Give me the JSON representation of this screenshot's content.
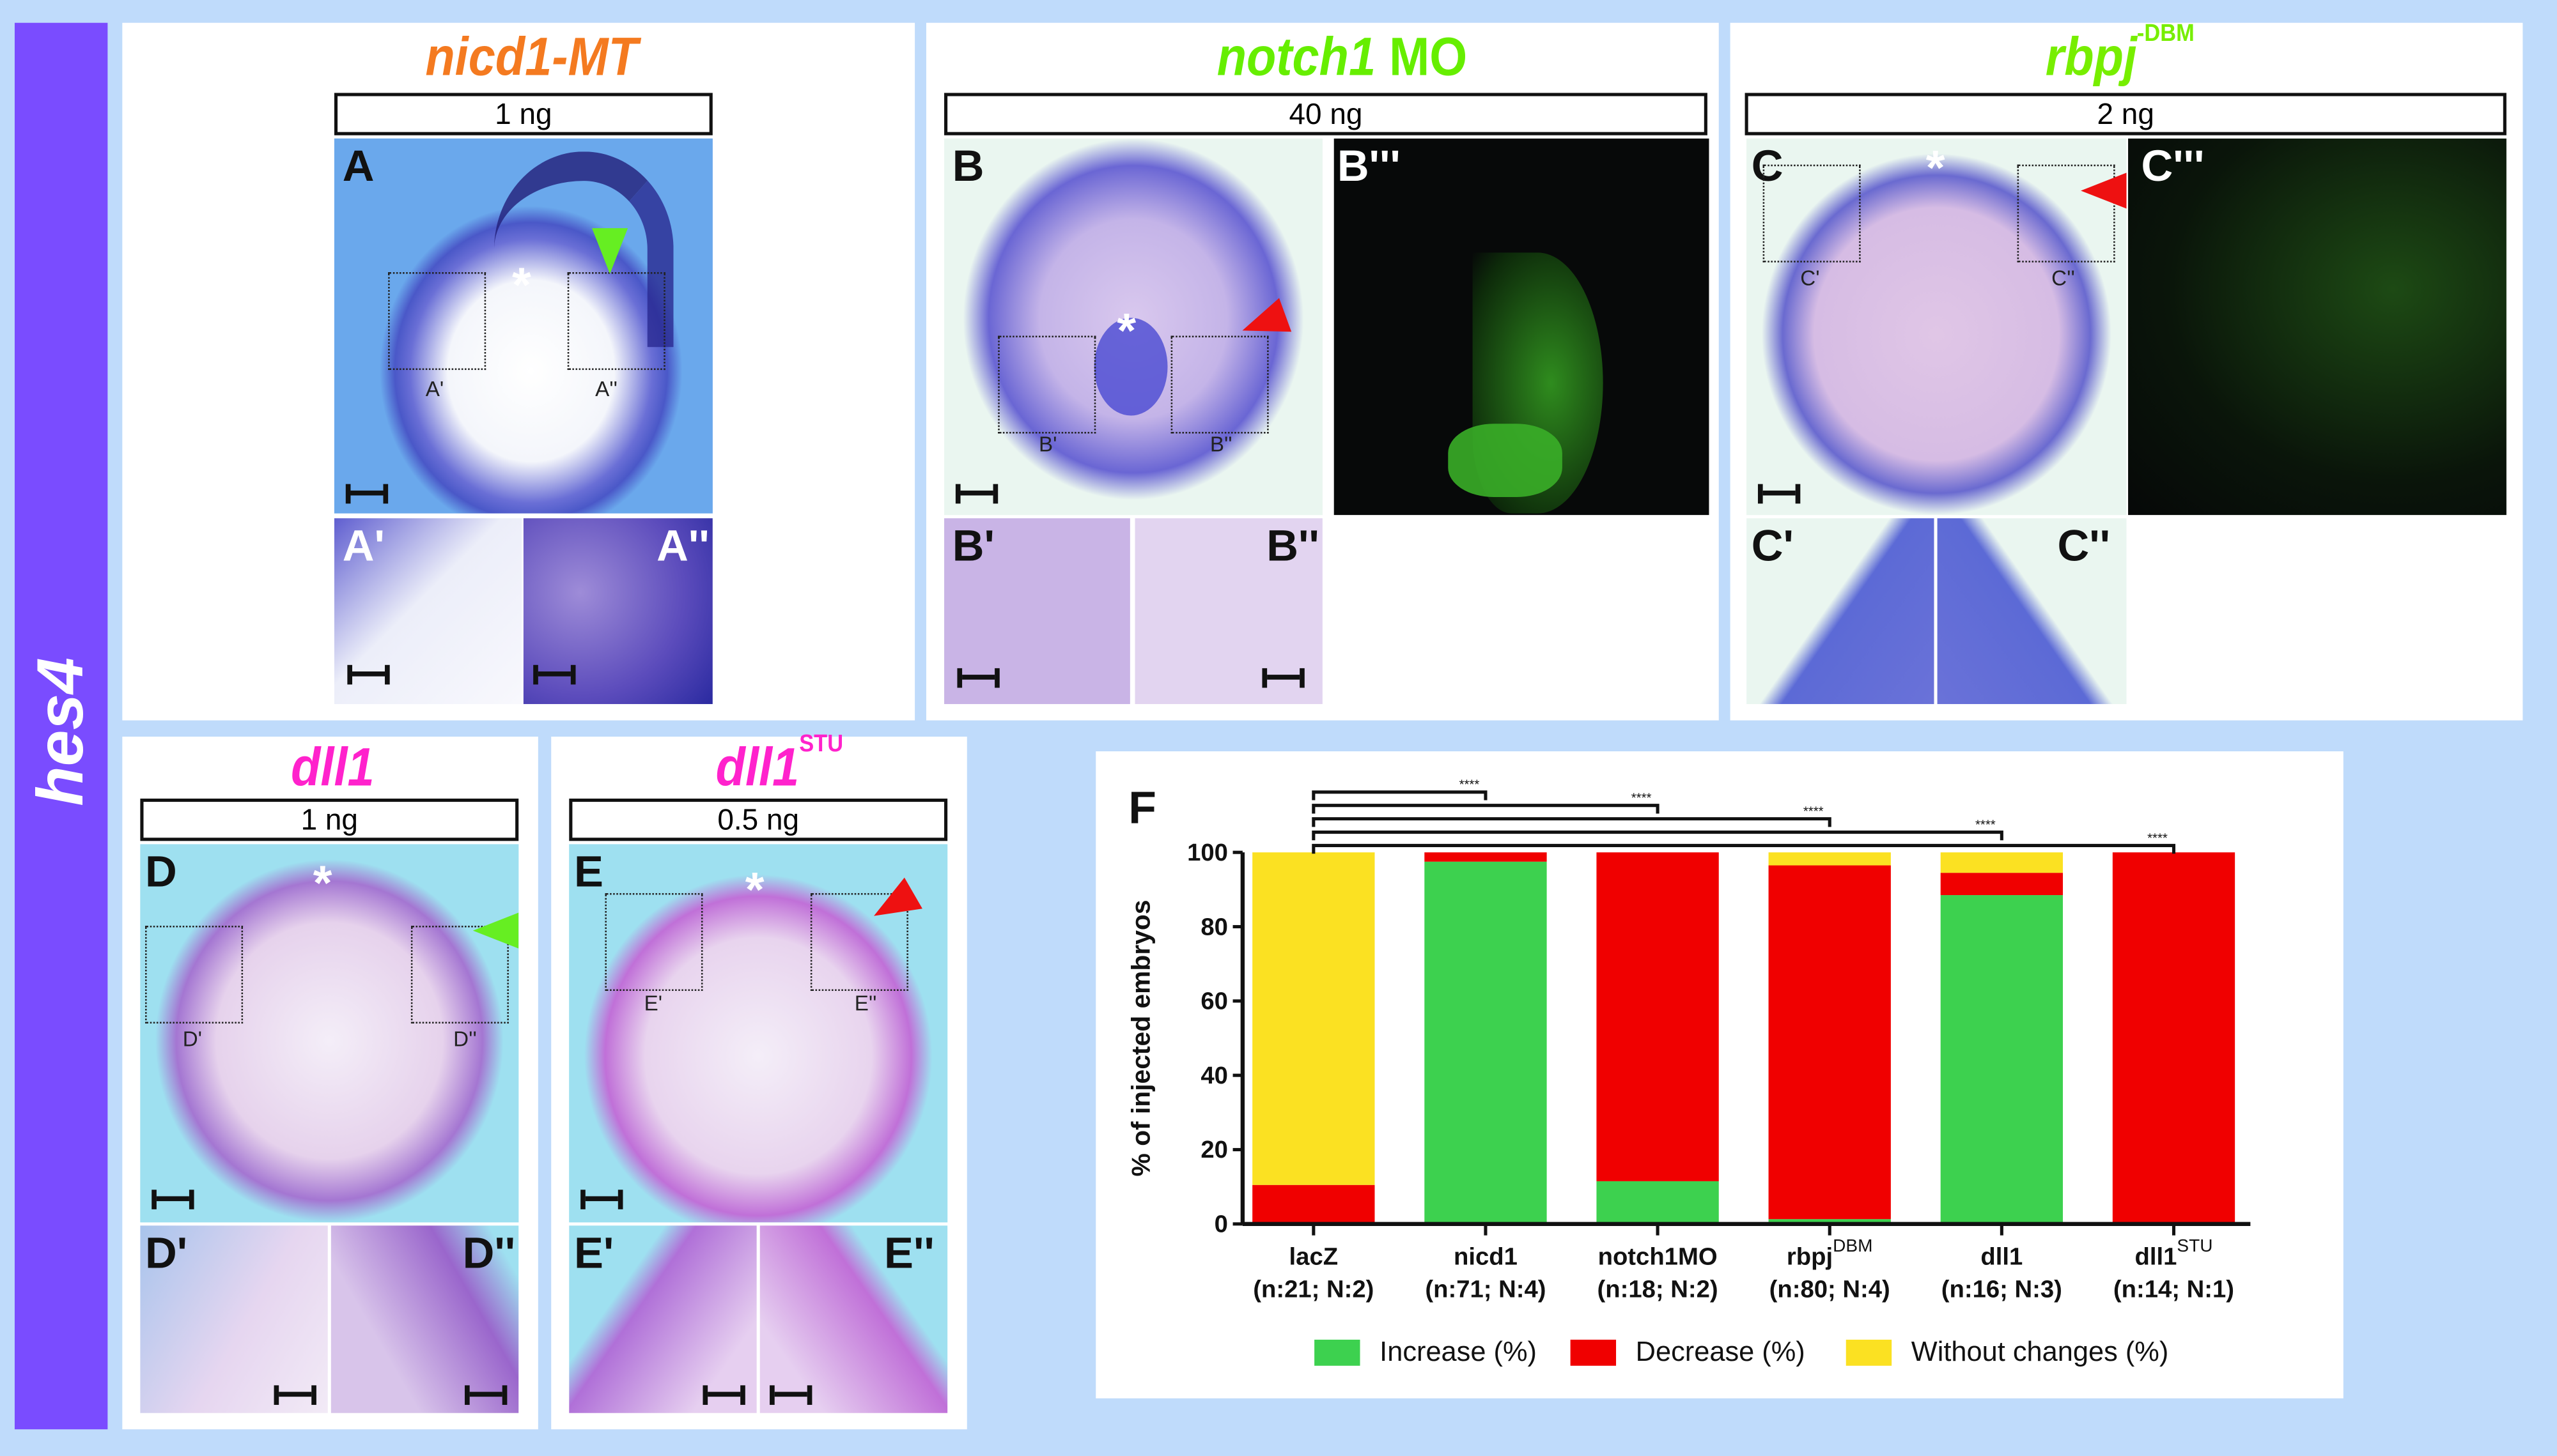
{
  "side_label": "hes4",
  "panels": {
    "A": {
      "title": "nicd1-MT",
      "title_color": "#f47a20",
      "dose": "1 ng",
      "label": "A",
      "box1": "A'",
      "box2": "A''",
      "inset1": "A'",
      "inset2": "A''",
      "arrow": "green"
    },
    "B": {
      "title": "notch1",
      "title_suffix": " MO",
      "title_color": "#66ee00",
      "dose": "40 ng",
      "label": "B",
      "fluor_label": "B'''",
      "box1": "B'",
      "box2": "B''",
      "inset1": "B'",
      "inset2": "B''",
      "arrow": "red"
    },
    "C": {
      "title": "rbpj",
      "title_sup": "-DBM",
      "title_color": "#77ee00",
      "dose": "2 ng",
      "label": "C",
      "fluor_label": "C'''",
      "box1": "C'",
      "box2": "C''",
      "inset1": "C'",
      "inset2": "C''",
      "arrow": "red"
    },
    "D": {
      "title": "dll1",
      "title_color": "#ff22cc",
      "dose": "1 ng",
      "label": "D",
      "box1": "D'",
      "box2": "D''",
      "inset1": "D'",
      "inset2": "D''",
      "arrow": "green"
    },
    "E": {
      "title": "dll1",
      "title_sup": "STU",
      "title_color": "#ff22cc",
      "dose": "0.5 ng",
      "label": "E",
      "box1": "E'",
      "box2": "E''",
      "inset1": "E'",
      "inset2": "E''",
      "arrow": "red"
    },
    "F": {
      "label": "F"
    }
  },
  "asterisk": "*",
  "chart_data": {
    "type": "bar",
    "stacked": true,
    "ylabel": "% of injected embryos",
    "ylim": [
      0,
      100
    ],
    "yticks": [
      "0",
      "20",
      "40",
      "60",
      "80",
      "100"
    ],
    "categories": [
      {
        "name": "lacZ",
        "sup": "",
        "n": "(n:21; N:2)"
      },
      {
        "name": "nicd1",
        "sup": "",
        "n": "(n:71; N:4)"
      },
      {
        "name": "notch1MO",
        "sup": "",
        "n": "(n:18; N:2)"
      },
      {
        "name": "rbpj",
        "sup": "DBM",
        "n": "(n:80; N:4)"
      },
      {
        "name": "dll1",
        "sup": "",
        "n": "(n:16; N:3)"
      },
      {
        "name": "dll1",
        "sup": "STU",
        "n": "(n:14; N:1)"
      }
    ],
    "series": [
      {
        "name": "Increase (%)",
        "color": "#3dd14f",
        "values": [
          0,
          97.5,
          11.5,
          1.3,
          88.5,
          0
        ]
      },
      {
        "name": "Decrease (%)",
        "color": "#f00000",
        "values": [
          10.5,
          2.5,
          88.5,
          95.2,
          6.0,
          100
        ]
      },
      {
        "name": "Without changes (%)",
        "color": "#fbe122",
        "values": [
          89.5,
          0,
          0,
          3.5,
          5.5,
          0
        ]
      }
    ],
    "significance": [
      {
        "from": "lacZ",
        "to": "nicd1",
        "label": "****"
      },
      {
        "from": "lacZ",
        "to": "notch1MO",
        "label": "****"
      },
      {
        "from": "lacZ",
        "to": "rbpjDBM",
        "label": "****"
      },
      {
        "from": "lacZ",
        "to": "dll1",
        "label": "****"
      },
      {
        "from": "lacZ",
        "to": "dll1STU",
        "label": "****"
      }
    ],
    "grid": false,
    "legend": "bottom"
  }
}
